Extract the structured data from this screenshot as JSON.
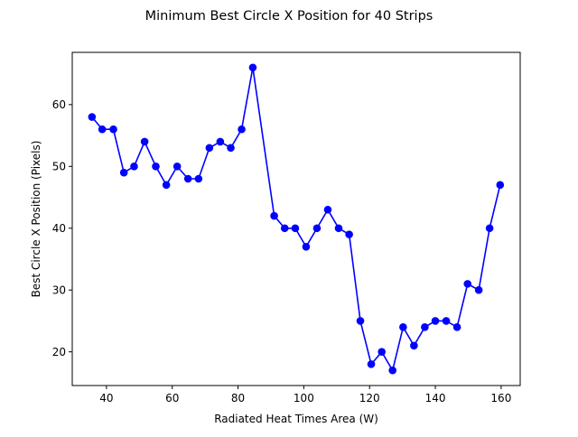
{
  "chart_data": {
    "type": "line",
    "title": "Minimum Best Circle X Position for 40 Strips",
    "xlabel": "Radiated Heat Times Area (W)",
    "ylabel": "Best Circle X Position (Pixels)",
    "xlim": [
      29.6,
      165.8
    ],
    "ylim": [
      14.55,
      68.45
    ],
    "xticks": [
      40,
      60,
      80,
      100,
      120,
      140,
      160
    ],
    "yticks": [
      20,
      30,
      40,
      50,
      60
    ],
    "grid": false,
    "legend": "none",
    "series": [
      {
        "color": "#0000ff",
        "marker": "circle",
        "x": [
          35.6,
          38.7,
          42.1,
          45.3,
          48.4,
          51.6,
          55.0,
          58.2,
          61.5,
          64.8,
          68.0,
          71.3,
          74.6,
          77.8,
          81.1,
          84.5,
          91.0,
          94.2,
          97.4,
          100.7,
          104.0,
          107.3,
          110.6,
          113.8,
          117.2,
          120.5,
          123.7,
          127.0,
          130.2,
          133.5,
          136.8,
          140.0,
          143.3,
          146.6,
          149.8,
          153.2,
          156.5,
          159.7
        ],
        "y": [
          58,
          56,
          56,
          49,
          50,
          54,
          50,
          47,
          50,
          48,
          48,
          53,
          54,
          53,
          56,
          66,
          42,
          40,
          40,
          37,
          40,
          43,
          40,
          39,
          25,
          18,
          20,
          17,
          24,
          21,
          24,
          25,
          25,
          24,
          31,
          30,
          40,
          47
        ]
      }
    ]
  }
}
